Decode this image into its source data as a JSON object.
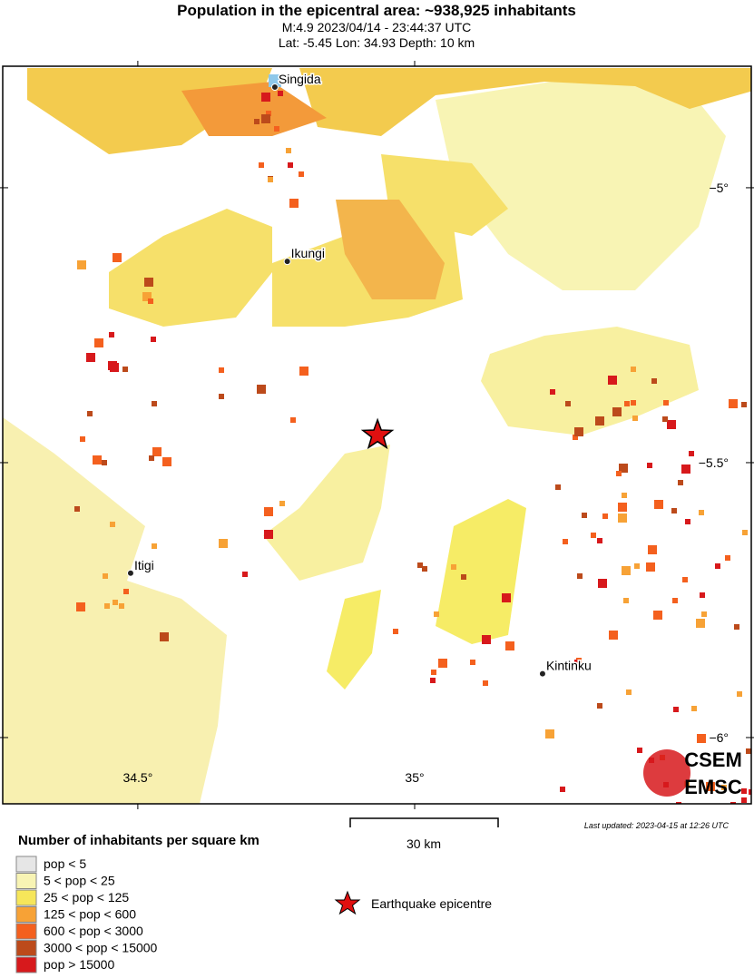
{
  "header": {
    "title": "Population in the epicentral area: ~938,925 inhabitants",
    "line1": "M:4.9 2023/04/14 - 23:44:37 UTC",
    "line2": "Lat: -5.45 Lon: 34.93 Depth: 10 km"
  },
  "map": {
    "lon_range": [
      34.256,
      35.608
    ],
    "lat_range": [
      -6.1205,
      -4.779
    ],
    "lon_ticks": [
      {
        "value": 34.5,
        "label": "34.5°"
      },
      {
        "value": 35,
        "label": "35°"
      }
    ],
    "lat_ticks": [
      {
        "value": -5,
        "label": "−5°"
      },
      {
        "value": -5.5,
        "label": "−5.5°"
      },
      {
        "value": -6,
        "label": "−6°"
      }
    ],
    "cities": [
      {
        "name": "Singida",
        "lon": 34.7475,
        "lat": -4.817
      },
      {
        "name": "Ikungi",
        "lon": 34.77,
        "lat": -5.134
      },
      {
        "name": "Itigi",
        "lon": 34.487,
        "lat": -5.701
      },
      {
        "name": "Kintinku",
        "lon": 35.231,
        "lat": -5.884
      }
    ],
    "epicentre": {
      "lon": 34.933,
      "lat": -5.45
    }
  },
  "legend": {
    "title": "Number of inhabitants per square km",
    "items": [
      {
        "label": "pop < 5",
        "color": "#e6e6e6"
      },
      {
        "label": "5 < pop < 25",
        "color": "#f8f4b4"
      },
      {
        "label": "25 < pop < 125",
        "color": "#f6e65a"
      },
      {
        "label": "125 < pop < 600",
        "color": "#f7a236"
      },
      {
        "label": "600 < pop < 3000",
        "color": "#f4601e"
      },
      {
        "label": "3000 < pop < 15000",
        "color": "#bc4a1b"
      },
      {
        "label": "pop > 15000",
        "color": "#d7191c"
      }
    ],
    "epicentre_label": "Earthquake epicentre"
  },
  "scale": {
    "label": "30 km"
  },
  "footer": {
    "updated": "Last updated: 2023-04-15 at 12:26 UTC",
    "logo_top": "CSEM",
    "logo_bottom": "EMSC"
  }
}
